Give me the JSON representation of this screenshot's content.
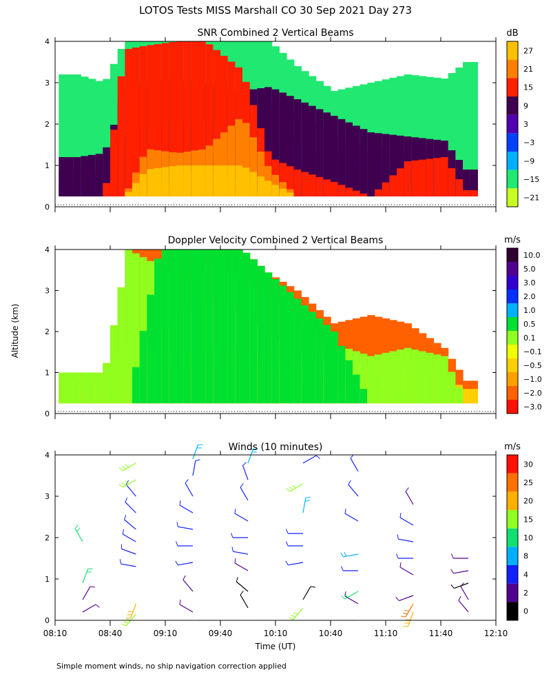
{
  "figure_title": "LOTOS Tests MISS Marshall CO  30 Sep 2021 Day 273",
  "footnote": "Simple moment winds, no ship navigation correction applied",
  "shared_axes": {
    "ylabel": "Altitude (km)",
    "xlabel": "Time (UT)",
    "ylim": [
      0,
      4
    ],
    "yticks": [
      "0",
      "1",
      "2",
      "3",
      "4"
    ],
    "xlim_minutes": [
      490,
      730
    ],
    "xticks": [
      {
        "m": 490,
        "label": "08:10"
      },
      {
        "m": 520,
        "label": "08:40"
      },
      {
        "m": 550,
        "label": "09:10"
      },
      {
        "m": 580,
        "label": "09:40"
      },
      {
        "m": 610,
        "label": "10:10"
      },
      {
        "m": 640,
        "label": "10:40"
      },
      {
        "m": 670,
        "label": "11:10"
      },
      {
        "m": 700,
        "label": "11:40"
      },
      {
        "m": 730,
        "label": "12:10"
      }
    ]
  },
  "chart_data": [
    {
      "type": "heatmap",
      "title": "SNR Combined 2 Vertical Beams",
      "units": "dB",
      "colorbar_labels": [
        "27",
        "21",
        "15",
        "9",
        "3",
        "−3",
        "−9",
        "−15",
        "−21"
      ],
      "colorbar_colors": [
        "#ffc000",
        "#ff8000",
        "#ff2000",
        "#400050",
        "#5000b0",
        "#0040ff",
        "#00b0ff",
        "#20e870",
        "#c8ff20"
      ],
      "profiles": [
        {
          "t": 500,
          "level_tops": [
            0.3,
            0.6,
            0.9,
            1.2
          ],
          "sky_top": 3.2
        },
        {
          "t": 515,
          "level_tops": [
            0.3,
            0.5,
            0.9,
            1.3
          ],
          "sky_top": 3.0
        },
        {
          "t": 526,
          "level_tops": [
            0.4,
            1.0,
            1.6,
            2.8,
            3.8
          ],
          "sky_top": 4.0
        },
        {
          "t": 538,
          "level_tops": [
            0.5,
            1.2,
            1.9,
            3.0,
            3.9,
            1.4,
            0.9
          ],
          "sky_top": 4.0
        },
        {
          "t": 555,
          "level_tops": [
            0.6,
            1.3,
            2.0,
            3.1,
            4.0,
            1.3,
            1.0,
            0.8
          ],
          "sky_top": 4.0
        },
        {
          "t": 570,
          "level_tops": [
            0.6,
            1.3,
            2.0,
            3.0,
            4.0,
            1.4,
            1.0,
            0.9
          ],
          "sky_top": 4.0
        },
        {
          "t": 590,
          "level_tops": [
            0.6,
            1.3,
            2.2,
            2.8,
            3.3,
            2.2,
            1.0,
            0.6
          ],
          "sky_top": 4.0
        },
        {
          "t": 605,
          "level_tops": [
            0.6,
            1.4,
            2.6,
            2.9,
            1.2,
            0.9,
            0.6
          ],
          "sky_top": 4.0
        },
        {
          "t": 620,
          "level_tops": [
            0.6,
            1.6,
            2.3,
            2.6,
            0.9
          ],
          "sky_top": 3.4
        },
        {
          "t": 640,
          "level_tops": [
            0.5,
            1.2,
            1.8,
            2.2,
            0.6
          ],
          "sky_top": 2.8
        },
        {
          "t": 660,
          "level_tops": [
            0.5,
            1.0,
            1.4,
            1.8
          ],
          "sky_top": 3.0
        },
        {
          "t": 680,
          "level_tops": [
            0.5,
            1.2,
            1.5,
            1.7,
            1.1
          ],
          "sky_top": 3.2
        },
        {
          "t": 700,
          "level_tops": [
            0.4,
            1.1,
            1.4,
            1.6,
            1.2
          ],
          "sky_top": 3.1
        },
        {
          "t": 712,
          "level_tops": [
            0.3,
            0.5,
            0.7,
            0.9,
            0.4
          ],
          "sky_top": 3.5
        }
      ]
    },
    {
      "type": "heatmap",
      "title": "Doppler Velocity Combined 2 Vertical Beams",
      "units": "m/s",
      "colorbar_labels": [
        "10.0",
        "5.0",
        "3.0",
        "2.0",
        "1.0",
        "0.5",
        "0.1",
        "−0.1",
        "−0.5",
        "−1.0",
        "−2.0",
        "−3.0"
      ],
      "colorbar_colors": [
        "#300030",
        "#500090",
        "#3000d0",
        "#0030ff",
        "#00b0ff",
        "#00e030",
        "#90ff20",
        "#f0ff00",
        "#ffd000",
        "#ffa000",
        "#ff6000",
        "#ff1000"
      ],
      "profiles": [
        {
          "t": 500,
          "level_tops": [
            0.4,
            0.7,
            0.85,
            1.0
          ],
          "sky_top": 1.0
        },
        {
          "t": 515,
          "level_tops": [
            0.4,
            0.7,
            0.9,
            1.0
          ],
          "sky_top": 1.0
        },
        {
          "t": 528,
          "level_tops": [
            0.9,
            1.3,
            1.7,
            4.0
          ],
          "sky_top": 4.0
        },
        {
          "t": 545,
          "level_tops": [
            1.1,
            1.4,
            1.9,
            3.6,
            4.0
          ],
          "sky_top": 4.0
        },
        {
          "t": 560,
          "level_tops": [
            1.1,
            1.5,
            2.4,
            3.3,
            4.0
          ],
          "sky_top": 4.0
        },
        {
          "t": 575,
          "level_tops": [
            1.1,
            1.6,
            2.8,
            3.7,
            4.0
          ],
          "sky_top": 4.0
        },
        {
          "t": 590,
          "level_tops": [
            1.1,
            1.6,
            2.6,
            3.3,
            4.0
          ],
          "sky_top": 4.0
        },
        {
          "t": 605,
          "level_tops": [
            1.0,
            1.4,
            2.0,
            3.0,
            3.4
          ],
          "sky_top": 3.4
        },
        {
          "t": 620,
          "level_tops": [
            0.7,
            1.1,
            1.5,
            2.4,
            2.8
          ],
          "sky_top": 3.0
        },
        {
          "t": 640,
          "level_tops": [
            0.6,
            0.9,
            1.3,
            1.7,
            2.0
          ],
          "sky_top": 2.2
        },
        {
          "t": 660,
          "level_tops": [
            0.6,
            0.9,
            1.2,
            1.4
          ],
          "sky_top": 2.4
        },
        {
          "t": 680,
          "level_tops": [
            0.5,
            1.0,
            1.4,
            1.6
          ],
          "sky_top": 2.2
        },
        {
          "t": 700,
          "level_tops": [
            0.5,
            0.9,
            1.2,
            1.4
          ],
          "sky_top": 1.6
        },
        {
          "t": 712,
          "level_tops": [
            0.4,
            0.6
          ],
          "sky_top": 0.8
        }
      ]
    },
    {
      "type": "scatter",
      "title": "Winds (10 minutes)",
      "units": "m/s",
      "colorbar_labels": [
        "30",
        "25",
        "20",
        "15",
        "10",
        "8",
        "4",
        "2",
        "0"
      ],
      "colorbar_colors": [
        "#ff1000",
        "#ff7000",
        "#ffb000",
        "#90ff20",
        "#10e070",
        "#00b0ff",
        "#1020ff",
        "#500090",
        "#000000"
      ],
      "columns": [
        {
          "t": 505,
          "barbs": [
            {
              "alt": 0.2,
              "speed": 3,
              "dir": 60
            },
            {
              "alt": 0.5,
              "speed": 3,
              "dir": 30
            },
            {
              "alt": 0.9,
              "speed": 10,
              "dir": 20
            },
            {
              "alt": 1.9,
              "speed": 10,
              "dir": 330
            }
          ]
        },
        {
          "t": 534,
          "barbs": [
            {
              "alt": 0.15,
              "speed": 15,
              "dir": 220
            },
            {
              "alt": 0.4,
              "speed": 20,
              "dir": 200
            },
            {
              "alt": 1.3,
              "speed": 4,
              "dir": 280
            },
            {
              "alt": 1.6,
              "speed": 4,
              "dir": 290
            },
            {
              "alt": 1.9,
              "speed": 4,
              "dir": 300
            },
            {
              "alt": 2.2,
              "speed": 4,
              "dir": 310
            },
            {
              "alt": 2.6,
              "speed": 4,
              "dir": 315
            },
            {
              "alt": 3.0,
              "speed": 4,
              "dir": 320
            },
            {
              "alt": 3.4,
              "speed": 15,
              "dir": 240
            },
            {
              "alt": 3.8,
              "speed": 15,
              "dir": 240
            }
          ]
        },
        {
          "t": 565,
          "barbs": [
            {
              "alt": 0.2,
              "speed": 2,
              "dir": 300
            },
            {
              "alt": 0.7,
              "speed": 2,
              "dir": 320
            },
            {
              "alt": 1.4,
              "speed": 4,
              "dir": 260
            },
            {
              "alt": 1.8,
              "speed": 4,
              "dir": 270
            },
            {
              "alt": 2.2,
              "speed": 4,
              "dir": 280
            },
            {
              "alt": 2.6,
              "speed": 4,
              "dir": 300
            },
            {
              "alt": 3.0,
              "speed": 4,
              "dir": 330
            },
            {
              "alt": 3.5,
              "speed": 4,
              "dir": 10
            },
            {
              "alt": 3.9,
              "speed": 8,
              "dir": 20
            }
          ]
        },
        {
          "t": 595,
          "barbs": [
            {
              "alt": 0.3,
              "speed": 1,
              "dir": 330
            },
            {
              "alt": 0.7,
              "speed": 1,
              "dir": 310
            },
            {
              "alt": 1.2,
              "speed": 2,
              "dir": 300
            },
            {
              "alt": 1.6,
              "speed": 4,
              "dir": 280
            },
            {
              "alt": 2.0,
              "speed": 4,
              "dir": 270
            },
            {
              "alt": 2.4,
              "speed": 4,
              "dir": 300
            },
            {
              "alt": 2.9,
              "speed": 4,
              "dir": 330
            },
            {
              "alt": 3.4,
              "speed": 4,
              "dir": 340
            },
            {
              "alt": 3.8,
              "speed": 8,
              "dir": 20
            }
          ]
        },
        {
          "t": 625,
          "barbs": [
            {
              "alt": 0.3,
              "speed": 15,
              "dir": 220
            },
            {
              "alt": 0.5,
              "speed": 1,
              "dir": 30
            },
            {
              "alt": 1.4,
              "speed": 4,
              "dir": 260
            },
            {
              "alt": 1.8,
              "speed": 4,
              "dir": 270
            },
            {
              "alt": 2.1,
              "speed": 4,
              "dir": 270
            },
            {
              "alt": 2.6,
              "speed": 8,
              "dir": 10
            },
            {
              "alt": 3.3,
              "speed": 15,
              "dir": 240
            },
            {
              "alt": 3.8,
              "speed": 4,
              "dir": 60
            }
          ]
        },
        {
          "t": 655,
          "barbs": [
            {
              "alt": 0.4,
              "speed": 2,
              "dir": 300
            },
            {
              "alt": 0.7,
              "speed": 10,
              "dir": 240
            },
            {
              "alt": 1.2,
              "speed": 4,
              "dir": 270
            },
            {
              "alt": 1.6,
              "speed": 8,
              "dir": 260
            },
            {
              "alt": 2.4,
              "speed": 4,
              "dir": 300
            },
            {
              "alt": 3.0,
              "speed": 4,
              "dir": 320
            },
            {
              "alt": 3.6,
              "speed": 4,
              "dir": 330
            }
          ]
        },
        {
          "t": 685,
          "barbs": [
            {
              "alt": 0.2,
              "speed": 20,
              "dir": 200
            },
            {
              "alt": 0.4,
              "speed": 25,
              "dir": 210
            },
            {
              "alt": 0.6,
              "speed": 2,
              "dir": 250
            },
            {
              "alt": 1.1,
              "speed": 2,
              "dir": 300
            },
            {
              "alt": 1.5,
              "speed": 4,
              "dir": 270
            },
            {
              "alt": 1.9,
              "speed": 4,
              "dir": 280
            },
            {
              "alt": 2.3,
              "speed": 4,
              "dir": 300
            },
            {
              "alt": 2.8,
              "speed": 2,
              "dir": 330
            }
          ]
        },
        {
          "t": 715,
          "barbs": [
            {
              "alt": 0.2,
              "speed": 2,
              "dir": 320
            },
            {
              "alt": 0.5,
              "speed": 2,
              "dir": 330
            },
            {
              "alt": 0.9,
              "speed": 1,
              "dir": 250
            },
            {
              "alt": 1.2,
              "speed": 2,
              "dir": 260
            },
            {
              "alt": 1.5,
              "speed": 2,
              "dir": 270
            }
          ]
        }
      ]
    }
  ]
}
